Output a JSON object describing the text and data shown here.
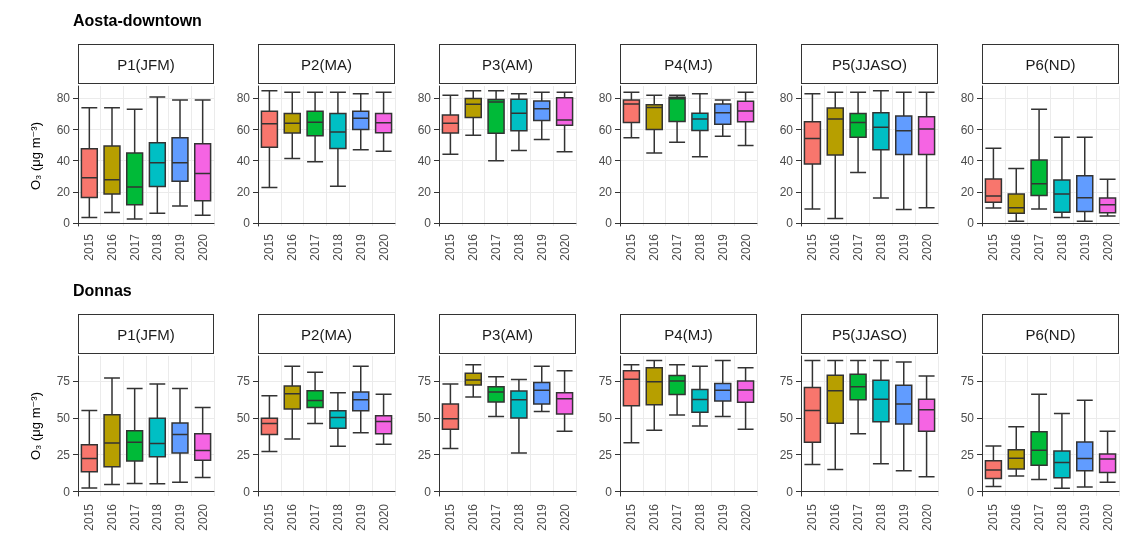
{
  "chart_data": [
    {
      "type": "box",
      "annotations": [
        "Aosta-downtown"
      ],
      "title": "P1(JFM)",
      "ylabel": "O₃ (μg m⁻³)",
      "categories": [
        "2015",
        "2016",
        "2017",
        "2018",
        "2019",
        "2020"
      ],
      "colors": [
        "#f8766d",
        "#b79f00",
        "#00ba38",
        "#00bfc4",
        "#619cff",
        "#f564e3"
      ],
      "ylim": [
        -2,
        88
      ],
      "yticks": [
        0,
        20,
        40,
        60,
        80
      ],
      "grid": true,
      "boxes": [
        {
          "low": 3.5,
          "q1": 16.4,
          "median": 29,
          "q3": 47.6,
          "high": 74
        },
        {
          "low": 6.7,
          "q1": 18.5,
          "median": 27.7,
          "q3": 49.5,
          "high": 74
        },
        {
          "low": 2.5,
          "q1": 11.6,
          "median": 23,
          "q3": 45,
          "high": 73
        },
        {
          "low": 6.2,
          "q1": 23.4,
          "median": 38.6,
          "q3": 51.5,
          "high": 81
        },
        {
          "low": 10.9,
          "q1": 26.8,
          "median": 38.6,
          "q3": 54.8,
          "high": 79
        },
        {
          "low": 4.9,
          "q1": 14.3,
          "median": 31.7,
          "q3": 50.9,
          "high": 79
        }
      ]
    },
    {
      "type": "box",
      "title": "P2(MA)",
      "categories": [
        "2015",
        "2016",
        "2017",
        "2018",
        "2019",
        "2020"
      ],
      "colors": [
        "#f8766d",
        "#b79f00",
        "#00ba38",
        "#00bfc4",
        "#619cff",
        "#f564e3"
      ],
      "ylim": [
        -2,
        88
      ],
      "yticks": [
        0,
        20,
        40,
        60,
        80
      ],
      "grid": true,
      "boxes": [
        {
          "low": 22.7,
          "q1": 48.6,
          "median": 63.8,
          "q3": 71.7,
          "high": 85
        },
        {
          "low": 41.4,
          "q1": 57.8,
          "median": 64,
          "q3": 70.3,
          "high": 84
        },
        {
          "low": 39.3,
          "q1": 56,
          "median": 64.7,
          "q3": 71.7,
          "high": 84
        },
        {
          "low": 23.6,
          "q1": 47.9,
          "median": 58.5,
          "q3": 70.3,
          "high": 84
        },
        {
          "low": 47,
          "q1": 60.1,
          "median": 67.3,
          "q3": 71.7,
          "high": 83
        },
        {
          "low": 46,
          "q1": 58,
          "median": 64.3,
          "q3": 70.3,
          "high": 84
        }
      ]
    },
    {
      "type": "box",
      "title": "P3(AM)",
      "categories": [
        "2015",
        "2016",
        "2017",
        "2018",
        "2019",
        "2020"
      ],
      "colors": [
        "#f8766d",
        "#b79f00",
        "#00ba38",
        "#00bfc4",
        "#619cff",
        "#f564e3"
      ],
      "ylim": [
        -2,
        88
      ],
      "yticks": [
        0,
        20,
        40,
        60,
        80
      ],
      "grid": true,
      "boxes": [
        {
          "low": 44.2,
          "q1": 57.8,
          "median": 64,
          "q3": 69.4,
          "high": 82
        },
        {
          "low": 56.4,
          "q1": 67.7,
          "median": 76.3,
          "q3": 80,
          "high": 85
        },
        {
          "low": 40,
          "q1": 57.6,
          "median": 77.7,
          "q3": 79.3,
          "high": 85
        },
        {
          "low": 46.5,
          "q1": 59.2,
          "median": 70.5,
          "q3": 79.5,
          "high": 83
        },
        {
          "low": 53.6,
          "q1": 65.9,
          "median": 73.3,
          "q3": 78.4,
          "high": 84
        },
        {
          "low": 45.8,
          "q1": 62.7,
          "median": 66.1,
          "q3": 80.5,
          "high": 84
        }
      ]
    },
    {
      "type": "box",
      "title": "P4(MJ)",
      "categories": [
        "2015",
        "2016",
        "2017",
        "2018",
        "2019",
        "2020"
      ],
      "colors": [
        "#f8766d",
        "#b79f00",
        "#00ba38",
        "#00bfc4",
        "#619cff",
        "#f564e3"
      ],
      "ylim": [
        -2,
        88
      ],
      "yticks": [
        0,
        20,
        40,
        60,
        80
      ],
      "grid": true,
      "boxes": [
        {
          "low": 54.8,
          "q1": 64.5,
          "median": 76.5,
          "q3": 79,
          "high": 84
        },
        {
          "low": 45,
          "q1": 60,
          "median": 74.2,
          "q3": 76,
          "high": 82
        },
        {
          "low": 51.8,
          "q1": 65.2,
          "median": 79.8,
          "q3": 80.7,
          "high": 82
        },
        {
          "low": 42.5,
          "q1": 59.4,
          "median": 66.8,
          "q3": 70.5,
          "high": 83
        },
        {
          "low": 55.7,
          "q1": 63.4,
          "median": 70.8,
          "q3": 76.5,
          "high": 79
        },
        {
          "low": 49.7,
          "q1": 65,
          "median": 71.9,
          "q3": 78.2,
          "high": 84
        }
      ]
    },
    {
      "type": "box",
      "title": "P5(JJASO)",
      "categories": [
        "2015",
        "2016",
        "2017",
        "2018",
        "2019",
        "2020"
      ],
      "colors": [
        "#f8766d",
        "#b79f00",
        "#00ba38",
        "#00bfc4",
        "#619cff",
        "#f564e3"
      ],
      "ylim": [
        -2,
        88
      ],
      "yticks": [
        0,
        20,
        40,
        60,
        80
      ],
      "grid": true,
      "boxes": [
        {
          "low": 9,
          "q1": 37.9,
          "median": 54.3,
          "q3": 65,
          "high": 83
        },
        {
          "low": 2.8,
          "q1": 43.7,
          "median": 66.8,
          "q3": 73.8,
          "high": 84
        },
        {
          "low": 32.4,
          "q1": 55,
          "median": 64.5,
          "q3": 70.3,
          "high": 84
        },
        {
          "low": 16,
          "q1": 47,
          "median": 61.5,
          "q3": 70.8,
          "high": 85
        },
        {
          "low": 8.6,
          "q1": 44,
          "median": 59.2,
          "q3": 68.7,
          "high": 84
        },
        {
          "low": 9.7,
          "q1": 44,
          "median": 60.4,
          "q3": 68.2,
          "high": 84
        }
      ]
    },
    {
      "type": "box",
      "title": "P6(ND)",
      "categories": [
        "2015",
        "2016",
        "2017",
        "2018",
        "2019",
        "2020"
      ],
      "colors": [
        "#f8766d",
        "#b79f00",
        "#00ba38",
        "#00bfc4",
        "#619cff",
        "#f564e3"
      ],
      "ylim": [
        -2,
        88
      ],
      "yticks": [
        0,
        20,
        40,
        60,
        80
      ],
      "grid": true,
      "boxes": [
        {
          "low": 9.5,
          "q1": 13.2,
          "median": 17.3,
          "q3": 28.2,
          "high": 48
        },
        {
          "low": 1,
          "q1": 6.2,
          "median": 9.7,
          "q3": 18.5,
          "high": 35
        },
        {
          "low": 9,
          "q1": 17.6,
          "median": 25.2,
          "q3": 40.5,
          "high": 73
        },
        {
          "low": 3.5,
          "q1": 6.9,
          "median": 18.5,
          "q3": 27.5,
          "high": 55
        },
        {
          "low": 1,
          "q1": 7.4,
          "median": 16.2,
          "q3": 30.3,
          "high": 55
        },
        {
          "low": 4.4,
          "q1": 6.5,
          "median": 11.6,
          "q3": 16,
          "high": 28
        }
      ]
    },
    {
      "type": "box",
      "annotations": [
        "Donnas"
      ],
      "title": "P1(JFM)",
      "ylabel": "O₃ (μg m⁻³)",
      "categories": [
        "2015",
        "2016",
        "2017",
        "2018",
        "2019",
        "2020"
      ],
      "colors": [
        "#f8766d",
        "#b79f00",
        "#00ba38",
        "#00bfc4",
        "#619cff",
        "#f564e3"
      ],
      "ylim": [
        -3,
        92
      ],
      "yticks": [
        0,
        25,
        50,
        75
      ],
      "grid": true,
      "boxes": [
        {
          "low": 2.4,
          "q1": 13.5,
          "median": 22.4,
          "q3": 31.7,
          "high": 55
        },
        {
          "low": 4.8,
          "q1": 16.8,
          "median": 32.9,
          "q3": 52.2,
          "high": 77
        },
        {
          "low": 5.5,
          "q1": 20.7,
          "median": 33.4,
          "q3": 41.3,
          "high": 70
        },
        {
          "low": 5.3,
          "q1": 23.6,
          "median": 32.7,
          "q3": 49.8,
          "high": 73
        },
        {
          "low": 6.3,
          "q1": 26.2,
          "median": 38.7,
          "q3": 46.6,
          "high": 70
        },
        {
          "low": 9.6,
          "q1": 21.2,
          "median": 27.9,
          "q3": 39.2,
          "high": 57
        }
      ]
    },
    {
      "type": "box",
      "title": "P2(MA)",
      "categories": [
        "2015",
        "2016",
        "2017",
        "2018",
        "2019",
        "2020"
      ],
      "colors": [
        "#f8766d",
        "#b79f00",
        "#00ba38",
        "#00bfc4",
        "#619cff",
        "#f564e3"
      ],
      "ylim": [
        -3,
        92
      ],
      "yticks": [
        0,
        25,
        50,
        75
      ],
      "grid": true,
      "boxes": [
        {
          "low": 27.2,
          "q1": 38.7,
          "median": 46.2,
          "q3": 49.8,
          "high": 65
        },
        {
          "low": 35.6,
          "q1": 56,
          "median": 66.3,
          "q3": 71.6,
          "high": 85
        },
        {
          "low": 46.2,
          "q1": 57,
          "median": 61.8,
          "q3": 68.5,
          "high": 81
        },
        {
          "low": 30.8,
          "q1": 43,
          "median": 50.2,
          "q3": 54.8,
          "high": 67
        },
        {
          "low": 40,
          "q1": 54.8,
          "median": 62.3,
          "q3": 67.5,
          "high": 85
        },
        {
          "low": 32.2,
          "q1": 39.2,
          "median": 47.6,
          "q3": 51.4,
          "high": 66
        }
      ]
    },
    {
      "type": "box",
      "title": "P3(AM)",
      "categories": [
        "2015",
        "2016",
        "2017",
        "2018",
        "2019",
        "2020"
      ],
      "colors": [
        "#f8766d",
        "#b79f00",
        "#00ba38",
        "#00bfc4",
        "#619cff",
        "#f564e3"
      ],
      "ylim": [
        -3,
        92
      ],
      "yticks": [
        0,
        25,
        50,
        75
      ],
      "grid": true,
      "boxes": [
        {
          "low": 29.3,
          "q1": 42.3,
          "median": 49.5,
          "q3": 59.4,
          "high": 73
        },
        {
          "low": 64.2,
          "q1": 72.4,
          "median": 75.7,
          "q3": 80.3,
          "high": 86
        },
        {
          "low": 51,
          "q1": 60.8,
          "median": 67.5,
          "q3": 71.2,
          "high": 78
        },
        {
          "low": 26.2,
          "q1": 50,
          "median": 62.3,
          "q3": 68.3,
          "high": 76
        },
        {
          "low": 54.3,
          "q1": 59.4,
          "median": 68.8,
          "q3": 74,
          "high": 85
        },
        {
          "low": 40.9,
          "q1": 52.6,
          "median": 63,
          "q3": 67,
          "high": 82
        }
      ]
    },
    {
      "type": "box",
      "title": "P4(MJ)",
      "categories": [
        "2015",
        "2016",
        "2017",
        "2018",
        "2019",
        "2020"
      ],
      "colors": [
        "#f8766d",
        "#b79f00",
        "#00ba38",
        "#00bfc4",
        "#619cff",
        "#f564e3"
      ],
      "ylim": [
        -3,
        92
      ],
      "yticks": [
        0,
        25,
        50,
        75
      ],
      "grid": true,
      "boxes": [
        {
          "low": 33.2,
          "q1": 58.2,
          "median": 76.2,
          "q3": 82,
          "high": 86
        },
        {
          "low": 41.6,
          "q1": 58.9,
          "median": 74.5,
          "q3": 84.1,
          "high": 89
        },
        {
          "low": 51.9,
          "q1": 65.9,
          "median": 75,
          "q3": 78.8,
          "high": 86
        },
        {
          "low": 44.5,
          "q1": 53.8,
          "median": 62.5,
          "q3": 69.2,
          "high": 85
        },
        {
          "low": 51,
          "q1": 61.5,
          "median": 68.8,
          "q3": 73.3,
          "high": 89
        },
        {
          "low": 42.3,
          "q1": 60.6,
          "median": 69,
          "q3": 75,
          "high": 84
        }
      ]
    },
    {
      "type": "box",
      "title": "P5(JJASO)",
      "categories": [
        "2015",
        "2016",
        "2017",
        "2018",
        "2019",
        "2020"
      ],
      "colors": [
        "#f8766d",
        "#b79f00",
        "#00ba38",
        "#00bfc4",
        "#619cff",
        "#f564e3"
      ],
      "ylim": [
        -3,
        92
      ],
      "yticks": [
        0,
        25,
        50,
        75
      ],
      "grid": true,
      "boxes": [
        {
          "low": 18.3,
          "q1": 33.4,
          "median": 55,
          "q3": 70.7,
          "high": 89
        },
        {
          "low": 14.9,
          "q1": 46.4,
          "median": 68.5,
          "q3": 79,
          "high": 89
        },
        {
          "low": 39.2,
          "q1": 62.3,
          "median": 71.2,
          "q3": 79.6,
          "high": 89
        },
        {
          "low": 18.8,
          "q1": 47.4,
          "median": 62.7,
          "q3": 75.5,
          "high": 89
        },
        {
          "low": 14.2,
          "q1": 45.9,
          "median": 59.4,
          "q3": 72.1,
          "high": 88
        },
        {
          "low": 10.1,
          "q1": 40.9,
          "median": 55.5,
          "q3": 62.7,
          "high": 78.4
        }
      ]
    },
    {
      "type": "box",
      "title": "P6(ND)",
      "categories": [
        "2015",
        "2016",
        "2017",
        "2018",
        "2019",
        "2020"
      ],
      "colors": [
        "#f8766d",
        "#b79f00",
        "#00ba38",
        "#00bfc4",
        "#619cff",
        "#f564e3"
      ],
      "ylim": [
        -3,
        92
      ],
      "yticks": [
        0,
        25,
        50,
        75
      ],
      "grid": true,
      "boxes": [
        {
          "low": 3.4,
          "q1": 8.9,
          "median": 14.7,
          "q3": 20.9,
          "high": 31
        },
        {
          "low": 10.6,
          "q1": 15.4,
          "median": 22.6,
          "q3": 28.4,
          "high": 44
        },
        {
          "low": 8.2,
          "q1": 17.8,
          "median": 28.1,
          "q3": 40.6,
          "high": 66
        },
        {
          "low": 2.2,
          "q1": 9.4,
          "median": 19.7,
          "q3": 27.6,
          "high": 53
        },
        {
          "low": 3.1,
          "q1": 14.2,
          "median": 22.4,
          "q3": 33.7,
          "high": 62
        },
        {
          "low": 6.3,
          "q1": 13,
          "median": 22.1,
          "q3": 25.5,
          "high": 41
        }
      ]
    }
  ]
}
